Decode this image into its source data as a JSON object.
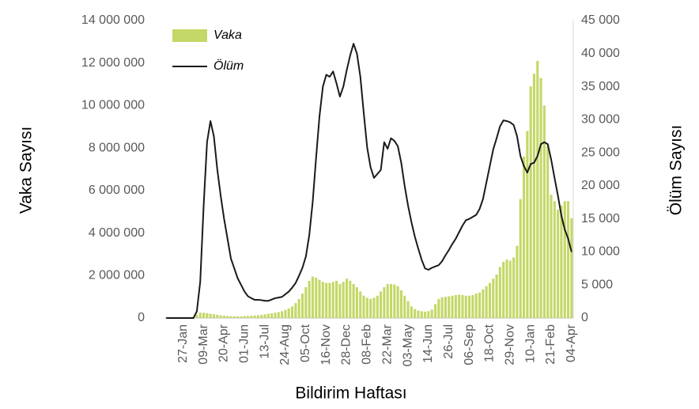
{
  "chart_data": {
    "type": "bar",
    "x_label": "Bildirim Haftası",
    "y_label": "Vaka Sayısı",
    "y2_label": "Ölüm Sayısı",
    "legend": "upper left",
    "categories": [
      null,
      null,
      null,
      null,
      null,
      "27-Jan",
      null,
      null,
      null,
      null,
      null,
      "09-Mar",
      null,
      null,
      null,
      null,
      null,
      "20-Apr",
      null,
      null,
      null,
      null,
      null,
      "01-Jun",
      null,
      null,
      null,
      null,
      null,
      "13-Jul",
      null,
      null,
      null,
      null,
      null,
      "24-Aug",
      null,
      null,
      null,
      null,
      null,
      "05-Oct",
      null,
      null,
      null,
      null,
      null,
      "16-Nov",
      null,
      null,
      null,
      null,
      null,
      "28-Dec",
      null,
      null,
      null,
      null,
      null,
      "08-Feb",
      null,
      null,
      null,
      null,
      null,
      "22-Mar",
      null,
      null,
      null,
      null,
      null,
      "03-May",
      null,
      null,
      null,
      null,
      null,
      "14-Jun",
      null,
      null,
      null,
      null,
      null,
      "26-Jul",
      null,
      null,
      null,
      null,
      null,
      "06-Sep",
      null,
      null,
      null,
      null,
      null,
      "18-Oct",
      null,
      null,
      null,
      null,
      null,
      "29-Nov",
      null,
      null,
      null,
      null,
      null,
      "10-Jan",
      null,
      null,
      null,
      null,
      null,
      "21-Feb",
      null,
      null,
      null,
      null,
      null,
      "04-Apr"
    ],
    "series": [
      {
        "name": "Vaka",
        "type": "bar",
        "color": "#c3d867",
        "values": [
          0,
          0,
          0,
          0,
          0,
          0,
          0,
          0,
          50000,
          150000,
          250000,
          250000,
          230000,
          200000,
          180000,
          150000,
          130000,
          110000,
          100000,
          90000,
          80000,
          80000,
          80000,
          90000,
          100000,
          110000,
          120000,
          130000,
          150000,
          170000,
          200000,
          220000,
          250000,
          280000,
          320000,
          380000,
          450000,
          550000,
          700000,
          900000,
          1150000,
          1450000,
          1750000,
          1950000,
          1900000,
          1800000,
          1700000,
          1650000,
          1650000,
          1700000,
          1750000,
          1600000,
          1700000,
          1850000,
          1750000,
          1600000,
          1450000,
          1250000,
          1050000,
          950000,
          900000,
          950000,
          1050000,
          1250000,
          1450000,
          1600000,
          1600000,
          1580000,
          1500000,
          1300000,
          1050000,
          800000,
          550000,
          420000,
          350000,
          320000,
          300000,
          320000,
          400000,
          650000,
          900000,
          980000,
          1000000,
          1020000,
          1050000,
          1080000,
          1100000,
          1080000,
          1050000,
          1050000,
          1080000,
          1150000,
          1200000,
          1350000,
          1500000,
          1650000,
          1850000,
          2050000,
          2400000,
          2650000,
          2750000,
          2700000,
          2850000,
          3400000,
          5600000,
          7600000,
          8800000,
          10900000,
          11500000,
          12100000,
          11300000,
          10000000,
          8100000,
          5800000,
          5500000,
          5100000,
          5300000,
          5500000,
          5500000,
          4700000
        ]
      },
      {
        "name": "Ölüm",
        "type": "line",
        "axis": "y2",
        "color": "#1a1a1a",
        "values": [
          0,
          0,
          0,
          0,
          0,
          0,
          0,
          0,
          0,
          1000,
          5500,
          17000,
          26600,
          29800,
          27500,
          22500,
          18500,
          15000,
          12000,
          9000,
          7500,
          6000,
          5000,
          4000,
          3300,
          3000,
          2750,
          2750,
          2700,
          2600,
          2600,
          2800,
          3000,
          3100,
          3200,
          3600,
          4000,
          4600,
          5300,
          6400,
          7600,
          9300,
          12500,
          17500,
          24200,
          30500,
          35000,
          36800,
          36500,
          37300,
          35500,
          33500,
          35000,
          37500,
          39700,
          41500,
          40000,
          36500,
          31000,
          25800,
          22800,
          21200,
          21800,
          22400,
          26600,
          25600,
          27200,
          26800,
          26000,
          23500,
          20000,
          17000,
          14500,
          12300,
          10500,
          8800,
          7500,
          7300,
          7600,
          7800,
          8000,
          8600,
          9500,
          10300,
          11200,
          12000,
          13000,
          14000,
          14800,
          15000,
          15300,
          15600,
          16500,
          18000,
          20500,
          23000,
          25500,
          27200,
          29000,
          29900,
          29800,
          29600,
          29200,
          27500,
          24500,
          23000,
          22000,
          23300,
          23500,
          24500,
          26300,
          26600,
          26300,
          24000,
          21200,
          18500,
          15500,
          13400,
          12000,
          10000
        ]
      }
    ],
    "ylim": [
      0,
      14000000
    ],
    "yticks": [
      0,
      {
        "value": 2000000,
        "label": "2 000 000"
      },
      {
        "value": 4000000,
        "label": "4 000 000"
      },
      {
        "value": 6000000,
        "label": "6 000 000"
      },
      {
        "value": 8000000,
        "label": "8 000 000"
      },
      {
        "value": 10000000,
        "label": "10 000 000"
      },
      {
        "value": 12000000,
        "label": "12 000 000"
      },
      {
        "value": 14000000,
        "label": "14 000 000"
      }
    ],
    "y2lim": [
      0,
      45000
    ],
    "y2ticks": [
      0,
      {
        "value": 5000,
        "label": "5 000"
      },
      {
        "value": 10000,
        "label": "10 000"
      },
      {
        "value": 15000,
        "label": "15 000"
      },
      {
        "value": 20000,
        "label": "20 000"
      },
      {
        "value": 25000,
        "label": "25 000"
      },
      {
        "value": 30000,
        "label": "30 000"
      },
      {
        "value": 35000,
        "label": "35 000"
      },
      {
        "value": 40000,
        "label": "40 000"
      },
      {
        "value": 45000,
        "label": "45 000"
      }
    ],
    "grid": false
  }
}
